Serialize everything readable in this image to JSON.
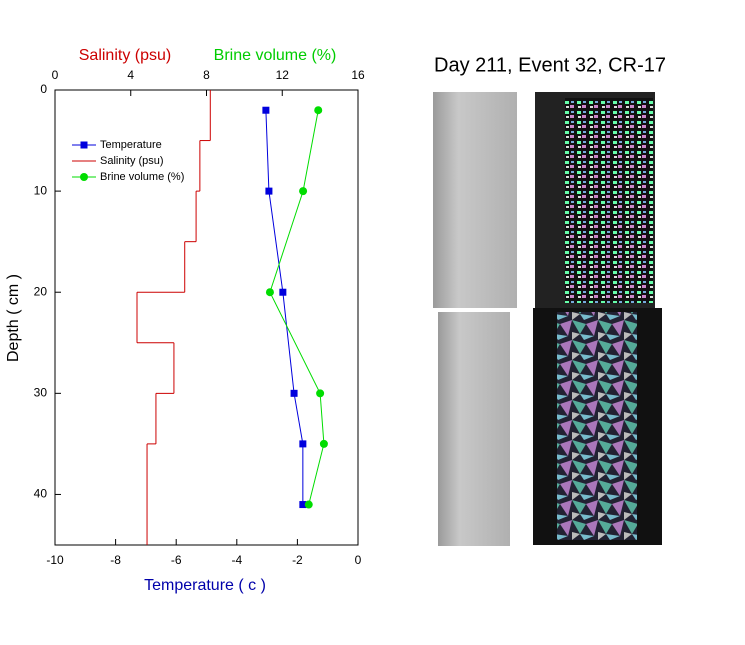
{
  "chart_data": {
    "type": "profile",
    "title": "Day 211, Event 32, CR-17",
    "xlabel": "Temperature ( c )",
    "ylabel": "Depth ( cm )",
    "xlim": [
      -10,
      0
    ],
    "xticks": [
      -10,
      -8,
      -6,
      -4,
      -2,
      0
    ],
    "x2lim": [
      0,
      16
    ],
    "x2ticks": [
      0,
      4,
      8,
      12,
      16
    ],
    "ylim": [
      0,
      45
    ],
    "yticks": [
      0,
      10,
      20,
      30,
      40
    ],
    "y_inverted": true,
    "series": [
      {
        "name": "Temperature",
        "color": "#0000dd",
        "axis": "x",
        "marker": "square",
        "depth": [
          2,
          10,
          20,
          30,
          35,
          41
        ],
        "values": [
          -3.04,
          -2.94,
          -2.48,
          -2.11,
          -1.82,
          -1.82
        ]
      },
      {
        "name": "Salinity (psu)",
        "color": "#cc0000",
        "axis": "x2",
        "step": true,
        "depth_bounds": [
          0,
          5,
          10,
          15,
          20,
          25,
          30,
          35,
          45
        ],
        "values": [
          8.2,
          7.65,
          7.45,
          6.85,
          4.33,
          6.28,
          5.33,
          4.86
        ]
      },
      {
        "name": "Brine volume (%)",
        "color": "#00dd00",
        "axis": "x2",
        "marker": "circle",
        "depth": [
          2,
          10,
          20,
          30,
          35,
          41
        ],
        "values": [
          13.9,
          13.1,
          11.35,
          14.0,
          14.2,
          13.4
        ]
      }
    ]
  }
}
